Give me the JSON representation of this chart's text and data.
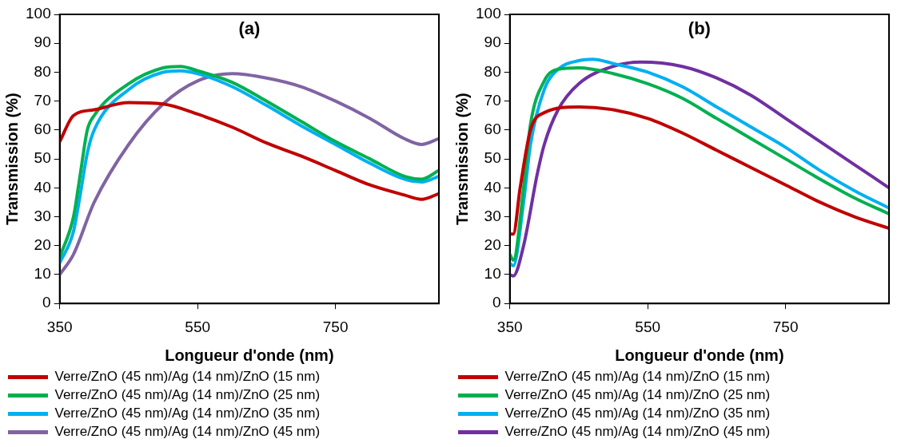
{
  "chart_data": [
    {
      "type": "line",
      "title": "(a)",
      "xlabel": "Longueur d'onde (nm)",
      "ylabel": "Transmission (%)",
      "xlim": [
        350,
        900
      ],
      "xticks": [
        350,
        550,
        750
      ],
      "ylim": [
        0,
        100
      ],
      "yticks": [
        0,
        10,
        20,
        30,
        40,
        50,
        60,
        70,
        80,
        90,
        100
      ],
      "legend": "bottom",
      "marker": "none",
      "grid": false,
      "series": [
        {
          "name": "Verre/ZnO (45 nm)/Ag (14 nm)/ZnO (15 nm)",
          "color": "#c00000",
          "x": [
            350,
            370,
            400,
            450,
            500,
            550,
            600,
            650,
            700,
            750,
            800,
            850,
            875,
            900
          ],
          "values": [
            56,
            65,
            67,
            69.5,
            69,
            65.5,
            61,
            55.5,
            51,
            46,
            41,
            37.5,
            36,
            38
          ]
        },
        {
          "name": "Verre/ZnO (45 nm)/Ag (14 nm)/ZnO (25 nm)",
          "color": "#00b050",
          "x": [
            350,
            370,
            380,
            390,
            400,
            450,
            500,
            525,
            550,
            600,
            650,
            700,
            750,
            800,
            850,
            875,
            900
          ],
          "values": [
            16,
            30,
            45,
            60,
            65,
            76,
            81.5,
            82,
            80.5,
            76.5,
            70,
            63,
            56,
            50,
            44,
            43,
            46
          ]
        },
        {
          "name": "Verre/ZnO (45 nm)/Ag (14 nm)/ZnO (35 nm)",
          "color": "#00b0f0",
          "x": [
            350,
            370,
            380,
            390,
            400,
            450,
            500,
            525,
            550,
            600,
            650,
            700,
            750,
            800,
            850,
            875,
            900
          ],
          "values": [
            14,
            25,
            38,
            52,
            60,
            74,
            80,
            80.5,
            79.5,
            75,
            68.5,
            61.5,
            55,
            48.5,
            43,
            42,
            44
          ]
        },
        {
          "name": "Verre/ZnO (45 nm)/Ag (14 nm)/ZnO (45 nm)",
          "color": "#8064a2",
          "x": [
            350,
            370,
            400,
            450,
            500,
            550,
            600,
            650,
            700,
            750,
            800,
            850,
            875,
            900
          ],
          "values": [
            10,
            17,
            35,
            55,
            69,
            77,
            79.5,
            78,
            75,
            70,
            64,
            57,
            55,
            57
          ]
        }
      ]
    },
    {
      "type": "line",
      "title": "(b)",
      "xlabel": "Longueur d'onde (nm)",
      "ylabel": "Transmission (%)",
      "xlim": [
        350,
        900
      ],
      "xticks": [
        350,
        550,
        750
      ],
      "ylim": [
        0,
        100
      ],
      "yticks": [
        0,
        10,
        20,
        30,
        40,
        50,
        60,
        70,
        80,
        90,
        100
      ],
      "legend": "bottom",
      "marker": "none",
      "grid": false,
      "series": [
        {
          "name": "Verre/ZnO (45 nm)/Ag (14 nm)/ZnO (15 nm)",
          "color": "#c00000",
          "x": [
            350,
            355,
            365,
            380,
            400,
            450,
            500,
            550,
            600,
            650,
            700,
            750,
            800,
            850,
            900
          ],
          "values": [
            24,
            24,
            40,
            60,
            66,
            68,
            67,
            64,
            59,
            53,
            47,
            41,
            35,
            30,
            26
          ]
        },
        {
          "name": "Verre/ZnO (45 nm)/Ag (14 nm)/ZnO (25 nm)",
          "color": "#00b050",
          "x": [
            350,
            355,
            370,
            380,
            400,
            420,
            450,
            500,
            550,
            600,
            650,
            700,
            750,
            800,
            850,
            900
          ],
          "values": [
            17,
            15,
            40,
            62,
            77,
            81,
            81.5,
            79.5,
            76,
            71,
            64,
            57,
            50,
            43,
            36.5,
            31
          ]
        },
        {
          "name": "Verre/ZnO (45 nm)/Ag (14 nm)/ZnO (35 nm)",
          "color": "#00b0f0",
          "x": [
            350,
            355,
            370,
            380,
            400,
            420,
            450,
            470,
            500,
            550,
            600,
            650,
            700,
            750,
            800,
            850,
            900
          ],
          "values": [
            14,
            13,
            35,
            55,
            74,
            81,
            84,
            84.5,
            83,
            80,
            75,
            68,
            61,
            54,
            46,
            39,
            33
          ]
        },
        {
          "name": "Verre/ZnO (45 nm)/Ag (14 nm)/ZnO (45 nm)",
          "color": "#7030a0",
          "x": [
            350,
            355,
            370,
            390,
            400,
            420,
            450,
            500,
            540,
            600,
            650,
            700,
            750,
            800,
            850,
            900
          ],
          "values": [
            10,
            9.5,
            20,
            45,
            55,
            67,
            76,
            82,
            83.5,
            82,
            78,
            72,
            64,
            56,
            48,
            40
          ]
        }
      ]
    }
  ]
}
